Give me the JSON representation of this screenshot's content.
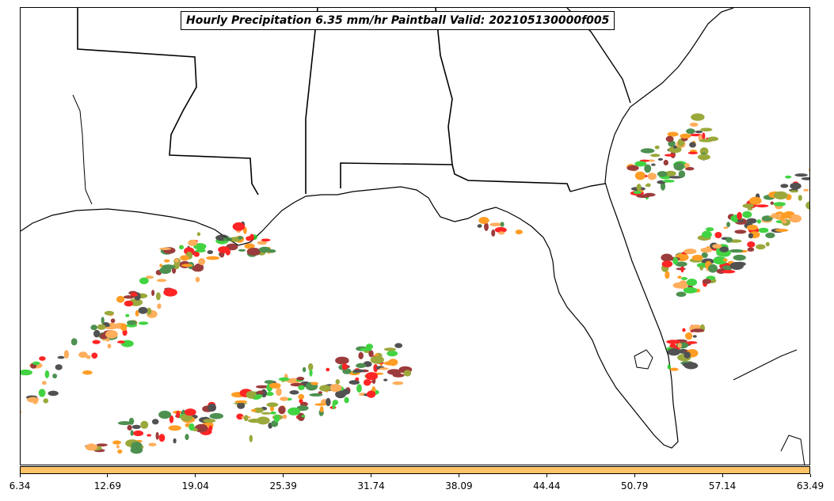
{
  "title": "Hourly Precipitation 6.35 mm/hr Paintball Valid: 202105130000f005",
  "colorbar": {
    "color": "#ffc266",
    "ticks": [
      "6.34",
      "12.69",
      "19.04",
      "25.39",
      "31.74",
      "38.09",
      "44.44",
      "50.79",
      "57.14",
      "63.49"
    ]
  },
  "colors": {
    "coastline": "#000000",
    "paint_dark_red": "#8b1a1a",
    "paint_red": "#ff0000",
    "paint_orange": "#ff8c00",
    "paint_light_orange": "#ffa040",
    "paint_olive": "#8a9a1a",
    "paint_green": "#22cc22",
    "paint_dark_green": "#2e7d32",
    "paint_gray": "#333333"
  }
}
